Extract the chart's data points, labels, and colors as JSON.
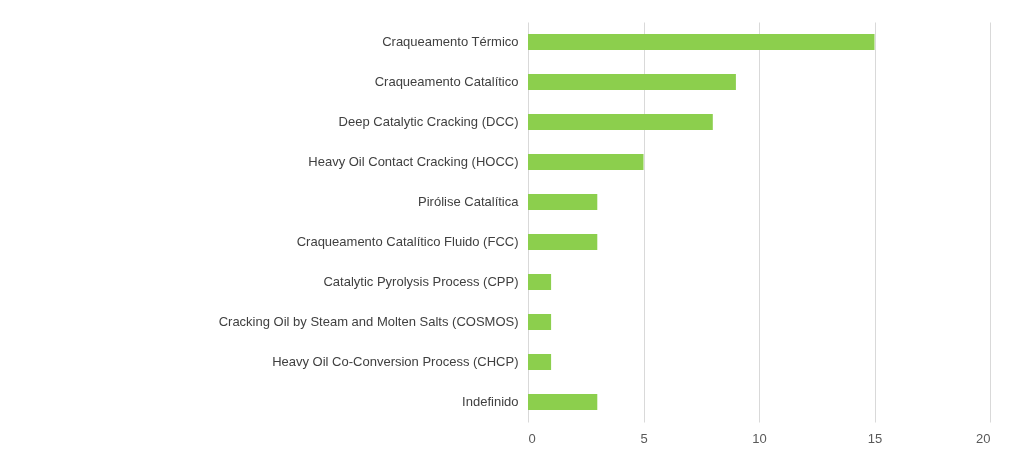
{
  "chart_data": {
    "type": "bar",
    "orientation": "horizontal",
    "categories": [
      "Craqueamento Térmico",
      "Craqueamento Catalítico",
      "Deep Catalytic Cracking (DCC)",
      "Heavy Oil Contact Cracking (HOCC)",
      "Pirólise Catalítica",
      "Craqueamento Catalítico Fluido (FCC)",
      "Catalytic Pyrolysis Process (CPP)",
      "Cracking Oil by Steam and Molten Salts (COSMOS)",
      "Heavy Oil Co-Conversion Process (CHCP)",
      "Indefinido"
    ],
    "values": [
      15,
      9,
      8,
      5,
      3,
      3,
      1,
      1,
      1,
      3
    ],
    "color": "#8ccf4d",
    "xlim": [
      0,
      20
    ],
    "xticks": [
      0,
      5,
      10,
      15,
      20
    ],
    "grid": "x"
  }
}
